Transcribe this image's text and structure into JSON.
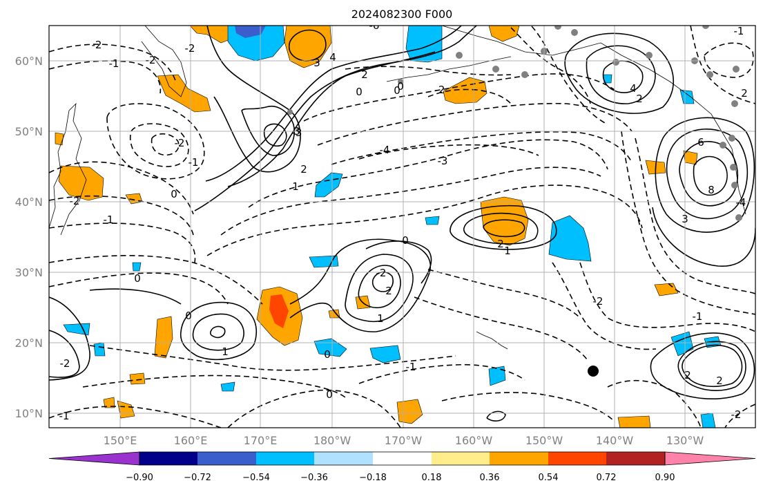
{
  "title": "2024082300 F000",
  "lat_labels": [
    "60°N",
    "50°N",
    "40°N",
    "30°N",
    "20°N",
    "10°N"
  ],
  "lon_labels": [
    "150°E",
    "160°E",
    "170°E",
    "180°W",
    "170°W",
    "160°W",
    "150°W",
    "140°W",
    "130°W"
  ],
  "colorbar": {
    "tick_labels": [
      "−0.90",
      "−0.72",
      "−0.54",
      "−0.36",
      "−0.18",
      "0.18",
      "0.36",
      "0.54",
      "0.72",
      "0.90"
    ],
    "colors": [
      "#9a32cd",
      "#00008b",
      "#3a5fcd",
      "#00bfff",
      "#b0e2ff",
      "#ffffff",
      "#ffec8b",
      "#ffa500",
      "#ff4500",
      "#b22222",
      "#ff82ab"
    ]
  },
  "contour_labels": [
    {
      "text": "-2"
    },
    {
      "text": "-1"
    },
    {
      "text": "-2"
    },
    {
      "text": "-2"
    },
    {
      "text": "-1"
    },
    {
      "text": "0"
    },
    {
      "text": "-3"
    },
    {
      "text": "-4"
    },
    {
      "text": "-3"
    },
    {
      "text": "-2"
    },
    {
      "text": "0"
    },
    {
      "text": "2"
    },
    {
      "text": "4"
    },
    {
      "text": "0"
    },
    {
      "text": "-2"
    },
    {
      "text": "-6"
    },
    {
      "text": "3"
    },
    {
      "text": "4"
    },
    {
      "text": "1"
    },
    {
      "text": "2"
    },
    {
      "text": "0"
    },
    {
      "text": "-2"
    },
    {
      "text": "0"
    },
    {
      "text": "-1"
    },
    {
      "text": "2"
    },
    {
      "text": "3"
    },
    {
      "text": "2"
    },
    {
      "text": "1"
    },
    {
      "text": "0"
    },
    {
      "text": "-1"
    },
    {
      "text": "1"
    },
    {
      "text": "0"
    },
    {
      "text": "-1"
    },
    {
      "text": "0"
    },
    {
      "text": "2"
    },
    {
      "text": "-2"
    },
    {
      "text": "-1"
    },
    {
      "text": "-2"
    },
    {
      "text": "6"
    },
    {
      "text": "8"
    },
    {
      "text": "3"
    },
    {
      "text": "2"
    },
    {
      "text": "2"
    },
    {
      "text": "-2"
    },
    {
      "text": "1"
    },
    {
      "text": "0"
    },
    {
      "text": "-1"
    },
    {
      "text": "2"
    },
    {
      "text": "-2"
    },
    {
      "text": "-4"
    }
  ],
  "colors": {
    "positive_fill": "#ffa500",
    "strong_positive_fill": "#ff4500",
    "negative_fill": "#00bfff",
    "deep_negative_fill": "#3a5fcd",
    "grid": "#b0b0b0",
    "axis_label": "#808080"
  }
}
